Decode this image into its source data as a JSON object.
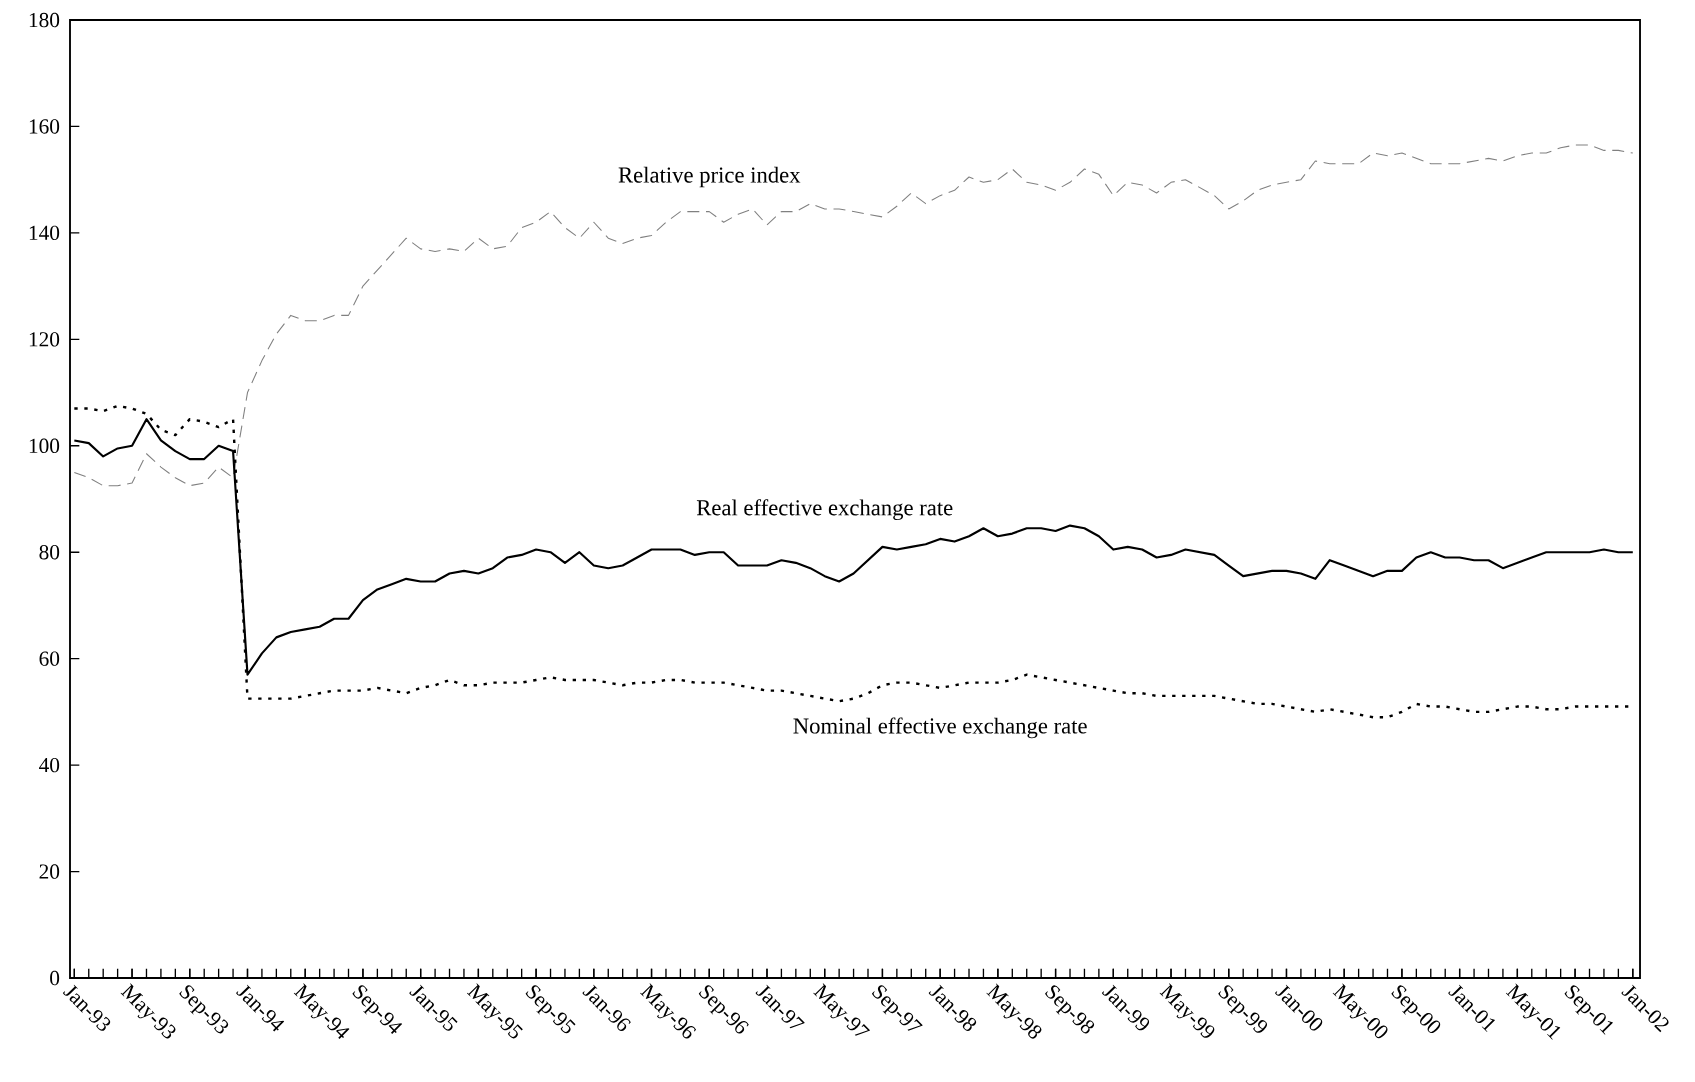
{
  "chart_data": {
    "type": "line",
    "categories": [
      "Jan-93",
      null,
      null,
      null,
      "May-93",
      null,
      null,
      null,
      "Sep-93",
      null,
      null,
      null,
      "Jan-94",
      null,
      null,
      null,
      "May-94",
      null,
      null,
      null,
      "Sep-94",
      null,
      null,
      null,
      "Jan-95",
      null,
      null,
      null,
      "May-95",
      null,
      null,
      null,
      "Sep-95",
      null,
      null,
      null,
      "Jan-96",
      null,
      null,
      null,
      "May-96",
      null,
      null,
      null,
      "Sep-96",
      null,
      null,
      null,
      "Jan-97",
      null,
      null,
      null,
      "May-97",
      null,
      null,
      null,
      "Sep-97",
      null,
      null,
      null,
      "Jan-98",
      null,
      null,
      null,
      "May-98",
      null,
      null,
      null,
      "Sep-98",
      null,
      null,
      null,
      "Jan-99",
      null,
      null,
      null,
      "May-99",
      null,
      null,
      null,
      "Sep-99",
      null,
      null,
      null,
      "Jan-00",
      null,
      null,
      null,
      "May-00",
      null,
      null,
      null,
      "Sep-00",
      null,
      null,
      null,
      "Jan-01",
      null,
      null,
      null,
      "May-01",
      null,
      null,
      null,
      "Sep-01",
      null,
      null,
      null,
      "Jan-02"
    ],
    "series": [
      {
        "name": "Relative price index",
        "color": "#808080",
        "line_style": "dashed",
        "values": [
          95,
          94,
          92.5,
          92.5,
          93,
          98.5,
          96,
          94,
          92.5,
          93,
          96,
          94,
          110,
          116,
          121,
          124.5,
          123.5,
          123.5,
          124.5,
          124.5,
          130,
          133,
          136,
          139,
          137,
          136.5,
          137,
          136.5,
          139,
          137,
          137.5,
          141,
          142,
          144,
          141,
          139,
          142,
          139,
          138,
          139,
          139.5,
          142,
          144,
          144,
          144,
          142,
          143.5,
          144.5,
          141.5,
          144,
          144,
          145.5,
          144.5,
          144.5,
          144,
          143.5,
          143,
          145,
          147.5,
          145.5,
          147,
          148,
          150.5,
          149.5,
          150,
          152,
          149.5,
          149,
          148,
          149.5,
          152,
          151,
          147,
          149.5,
          149,
          147.5,
          149.5,
          150,
          148.5,
          147,
          144.5,
          146,
          148,
          149,
          149.5,
          150,
          153.5,
          153,
          153,
          153,
          155,
          154.5,
          155,
          154,
          153,
          153,
          153,
          153.5,
          154,
          153.5,
          154.5,
          155,
          155,
          156,
          156.5,
          156.5,
          155.5,
          155.5,
          155
        ]
      },
      {
        "name": "Real effective exchange rate",
        "color": "#000000",
        "line_style": "solid",
        "values": [
          101,
          100.5,
          98,
          99.5,
          100,
          105,
          101,
          99,
          97.5,
          97.5,
          100,
          99,
          57,
          61,
          64,
          65,
          65.5,
          66,
          67.5,
          67.5,
          71,
          73,
          74,
          75,
          74.5,
          74.5,
          76,
          76.5,
          76,
          77,
          79,
          79.5,
          80.5,
          80,
          78,
          80,
          77.5,
          77,
          77.5,
          79,
          80.5,
          80.5,
          80.5,
          79.5,
          80,
          80,
          77.5,
          77.5,
          77.5,
          78.5,
          78,
          77,
          75.5,
          74.5,
          76,
          78.5,
          81,
          80.5,
          81,
          81.5,
          82.5,
          82,
          83,
          84.5,
          83,
          83.5,
          84.5,
          84.5,
          84,
          85,
          84.5,
          83,
          80.5,
          81,
          80.5,
          79,
          79.5,
          80.5,
          80,
          79.5,
          77.5,
          75.5,
          76,
          76.5,
          76.5,
          76,
          75,
          78.5,
          77.5,
          76.5,
          75.5,
          76.5,
          76.5,
          79,
          80,
          79,
          79,
          78.5,
          78.5,
          77,
          78,
          79,
          80,
          80,
          80,
          80,
          80.5,
          80,
          80
        ]
      },
      {
        "name": "Nominal effective exchange rate",
        "color": "#000000",
        "line_style": "dotted",
        "values": [
          107,
          107,
          106.5,
          107.5,
          107,
          106,
          103,
          102,
          105,
          104.5,
          103.5,
          105,
          52.5,
          52.5,
          52.5,
          52.5,
          53,
          53.5,
          54,
          54,
          54,
          54.5,
          54,
          53.5,
          54.5,
          55,
          56,
          55,
          55,
          55.5,
          55.5,
          55.5,
          56,
          56.5,
          56,
          56,
          56,
          55.5,
          55,
          55.5,
          55.5,
          56,
          56,
          55.5,
          55.5,
          55.5,
          55,
          54.5,
          54,
          54,
          53.5,
          53,
          52.5,
          52,
          52.5,
          53.5,
          55,
          55.5,
          55.5,
          55,
          54.5,
          55,
          55.5,
          55.5,
          55.5,
          56,
          57,
          56.5,
          56,
          55.5,
          55,
          54.5,
          54,
          53.5,
          53.5,
          53,
          53,
          53,
          53,
          53,
          52.5,
          52,
          51.5,
          51.5,
          51,
          50.5,
          50,
          50.5,
          50,
          49.5,
          49,
          49,
          50,
          51.5,
          51,
          51,
          50.5,
          50,
          50,
          50.5,
          51,
          51,
          50.5,
          50.5,
          51,
          51,
          51,
          51,
          51
        ]
      }
    ],
    "ylim": [
      0,
      180
    ],
    "yticks": [
      0,
      20,
      40,
      60,
      80,
      100,
      120,
      140,
      160,
      180
    ],
    "grid": false,
    "legend": false,
    "marker": "none"
  }
}
